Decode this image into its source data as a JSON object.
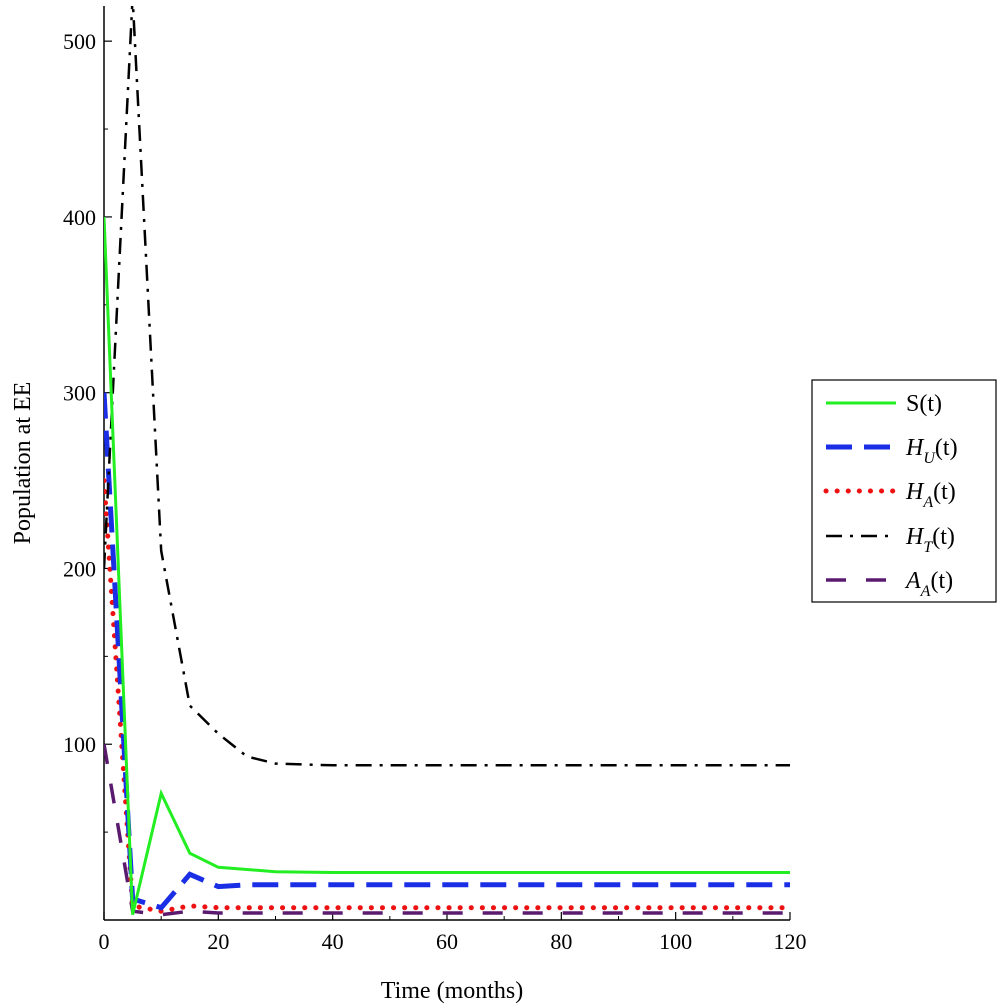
{
  "chart_data": {
    "type": "line",
    "title": "",
    "xlabel": "Time (months)",
    "ylabel": "Population at EE",
    "xlim": [
      0,
      120
    ],
    "ylim": [
      0,
      520
    ],
    "xticks": [
      0,
      20,
      40,
      60,
      80,
      100,
      120
    ],
    "yticks": [
      100,
      200,
      300,
      400,
      500
    ],
    "grid": false,
    "legend_position": "right",
    "series": [
      {
        "name": "S(t)",
        "color": "#22ee22",
        "dash": "solid",
        "x": [
          0,
          5,
          10,
          15,
          20,
          30,
          40,
          60,
          80,
          100,
          120
        ],
        "y": [
          400,
          3,
          72,
          38,
          30,
          27.5,
          27,
          27,
          27,
          27,
          27
        ]
      },
      {
        "name": "H_U(t)",
        "label_base": "H",
        "label_sub": "U",
        "label_tail": "(t)",
        "color": "#1a2ee6",
        "dash": "long-dash",
        "x": [
          0,
          5,
          10,
          15,
          20,
          25,
          40,
          60,
          80,
          100,
          120
        ],
        "y": [
          300,
          12,
          7,
          26,
          19,
          20,
          20,
          20,
          20,
          20,
          20
        ]
      },
      {
        "name": "H_A(t)",
        "label_base": "H",
        "label_sub": "A",
        "label_tail": "(t)",
        "color": "#ee1111",
        "dash": "dotted",
        "x": [
          0,
          5,
          10,
          15,
          20,
          40,
          60,
          80,
          100,
          120
        ],
        "y": [
          250,
          8,
          5,
          8,
          7,
          7,
          7,
          7,
          7,
          7
        ]
      },
      {
        "name": "H_T(t)",
        "label_base": "H",
        "label_sub": "T",
        "label_tail": "(t)",
        "color": "#000000",
        "dash": "dash-dot",
        "x": [
          0,
          5,
          10,
          15,
          20,
          25,
          30,
          40,
          60,
          80,
          100,
          120
        ],
        "y": [
          200,
          525,
          210,
          122,
          106,
          93,
          89,
          88,
          88,
          88,
          88,
          88
        ]
      },
      {
        "name": "A_A(t)",
        "label_base": "A",
        "label_sub": "A",
        "label_tail": "(t)",
        "color": "#5a1a6e",
        "dash": "medium-dash",
        "x": [
          0,
          5,
          10,
          15,
          20,
          40,
          60,
          80,
          100,
          120
        ],
        "y": [
          100,
          5,
          3,
          5,
          4,
          4,
          4,
          4,
          4,
          4
        ]
      }
    ]
  }
}
